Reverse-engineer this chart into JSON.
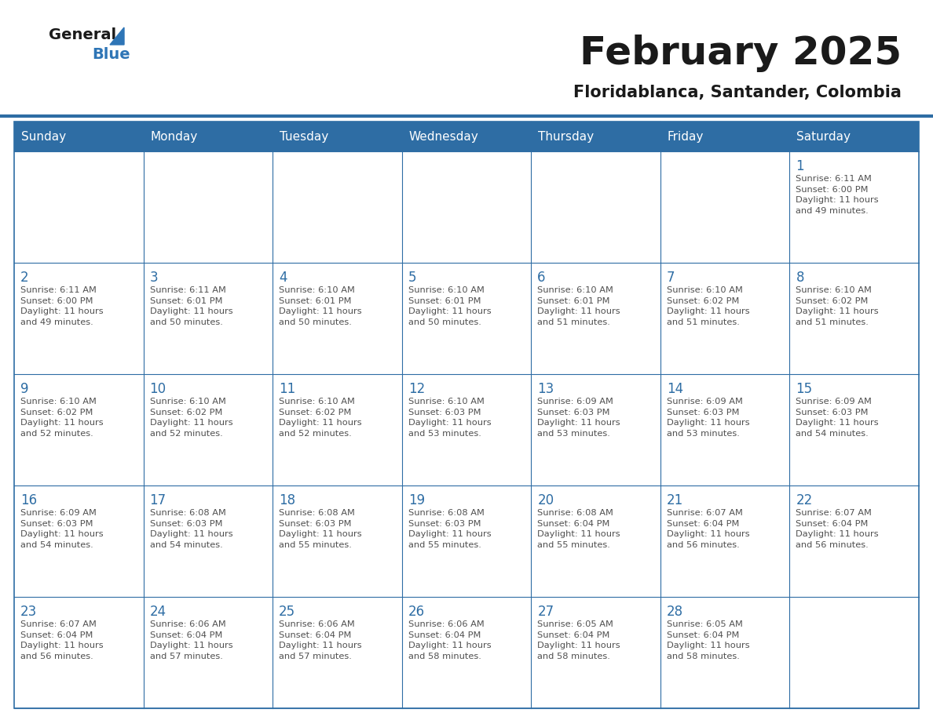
{
  "title": "February 2025",
  "subtitle": "Floridablanca, Santander, Colombia",
  "header_bg": "#2E6DA4",
  "header_text": "#FFFFFF",
  "cell_bg": "#FFFFFF",
  "border_color": "#2E6DA4",
  "day_headers": [
    "Sunday",
    "Monday",
    "Tuesday",
    "Wednesday",
    "Thursday",
    "Friday",
    "Saturday"
  ],
  "title_color": "#1a1a1a",
  "subtitle_color": "#1a1a1a",
  "day_num_color": "#2E6DA4",
  "cell_text_color": "#505050",
  "logo_black": "#1a1a1a",
  "logo_blue": "#2E75B6",
  "weeks": [
    [
      {
        "day": null,
        "info": null
      },
      {
        "day": null,
        "info": null
      },
      {
        "day": null,
        "info": null
      },
      {
        "day": null,
        "info": null
      },
      {
        "day": null,
        "info": null
      },
      {
        "day": null,
        "info": null
      },
      {
        "day": 1,
        "info": "Sunrise: 6:11 AM\nSunset: 6:00 PM\nDaylight: 11 hours\nand 49 minutes."
      }
    ],
    [
      {
        "day": 2,
        "info": "Sunrise: 6:11 AM\nSunset: 6:00 PM\nDaylight: 11 hours\nand 49 minutes."
      },
      {
        "day": 3,
        "info": "Sunrise: 6:11 AM\nSunset: 6:01 PM\nDaylight: 11 hours\nand 50 minutes."
      },
      {
        "day": 4,
        "info": "Sunrise: 6:10 AM\nSunset: 6:01 PM\nDaylight: 11 hours\nand 50 minutes."
      },
      {
        "day": 5,
        "info": "Sunrise: 6:10 AM\nSunset: 6:01 PM\nDaylight: 11 hours\nand 50 minutes."
      },
      {
        "day": 6,
        "info": "Sunrise: 6:10 AM\nSunset: 6:01 PM\nDaylight: 11 hours\nand 51 minutes."
      },
      {
        "day": 7,
        "info": "Sunrise: 6:10 AM\nSunset: 6:02 PM\nDaylight: 11 hours\nand 51 minutes."
      },
      {
        "day": 8,
        "info": "Sunrise: 6:10 AM\nSunset: 6:02 PM\nDaylight: 11 hours\nand 51 minutes."
      }
    ],
    [
      {
        "day": 9,
        "info": "Sunrise: 6:10 AM\nSunset: 6:02 PM\nDaylight: 11 hours\nand 52 minutes."
      },
      {
        "day": 10,
        "info": "Sunrise: 6:10 AM\nSunset: 6:02 PM\nDaylight: 11 hours\nand 52 minutes."
      },
      {
        "day": 11,
        "info": "Sunrise: 6:10 AM\nSunset: 6:02 PM\nDaylight: 11 hours\nand 52 minutes."
      },
      {
        "day": 12,
        "info": "Sunrise: 6:10 AM\nSunset: 6:03 PM\nDaylight: 11 hours\nand 53 minutes."
      },
      {
        "day": 13,
        "info": "Sunrise: 6:09 AM\nSunset: 6:03 PM\nDaylight: 11 hours\nand 53 minutes."
      },
      {
        "day": 14,
        "info": "Sunrise: 6:09 AM\nSunset: 6:03 PM\nDaylight: 11 hours\nand 53 minutes."
      },
      {
        "day": 15,
        "info": "Sunrise: 6:09 AM\nSunset: 6:03 PM\nDaylight: 11 hours\nand 54 minutes."
      }
    ],
    [
      {
        "day": 16,
        "info": "Sunrise: 6:09 AM\nSunset: 6:03 PM\nDaylight: 11 hours\nand 54 minutes."
      },
      {
        "day": 17,
        "info": "Sunrise: 6:08 AM\nSunset: 6:03 PM\nDaylight: 11 hours\nand 54 minutes."
      },
      {
        "day": 18,
        "info": "Sunrise: 6:08 AM\nSunset: 6:03 PM\nDaylight: 11 hours\nand 55 minutes."
      },
      {
        "day": 19,
        "info": "Sunrise: 6:08 AM\nSunset: 6:03 PM\nDaylight: 11 hours\nand 55 minutes."
      },
      {
        "day": 20,
        "info": "Sunrise: 6:08 AM\nSunset: 6:04 PM\nDaylight: 11 hours\nand 55 minutes."
      },
      {
        "day": 21,
        "info": "Sunrise: 6:07 AM\nSunset: 6:04 PM\nDaylight: 11 hours\nand 56 minutes."
      },
      {
        "day": 22,
        "info": "Sunrise: 6:07 AM\nSunset: 6:04 PM\nDaylight: 11 hours\nand 56 minutes."
      }
    ],
    [
      {
        "day": 23,
        "info": "Sunrise: 6:07 AM\nSunset: 6:04 PM\nDaylight: 11 hours\nand 56 minutes."
      },
      {
        "day": 24,
        "info": "Sunrise: 6:06 AM\nSunset: 6:04 PM\nDaylight: 11 hours\nand 57 minutes."
      },
      {
        "day": 25,
        "info": "Sunrise: 6:06 AM\nSunset: 6:04 PM\nDaylight: 11 hours\nand 57 minutes."
      },
      {
        "day": 26,
        "info": "Sunrise: 6:06 AM\nSunset: 6:04 PM\nDaylight: 11 hours\nand 58 minutes."
      },
      {
        "day": 27,
        "info": "Sunrise: 6:05 AM\nSunset: 6:04 PM\nDaylight: 11 hours\nand 58 minutes."
      },
      {
        "day": 28,
        "info": "Sunrise: 6:05 AM\nSunset: 6:04 PM\nDaylight: 11 hours\nand 58 minutes."
      },
      {
        "day": null,
        "info": null
      }
    ]
  ]
}
